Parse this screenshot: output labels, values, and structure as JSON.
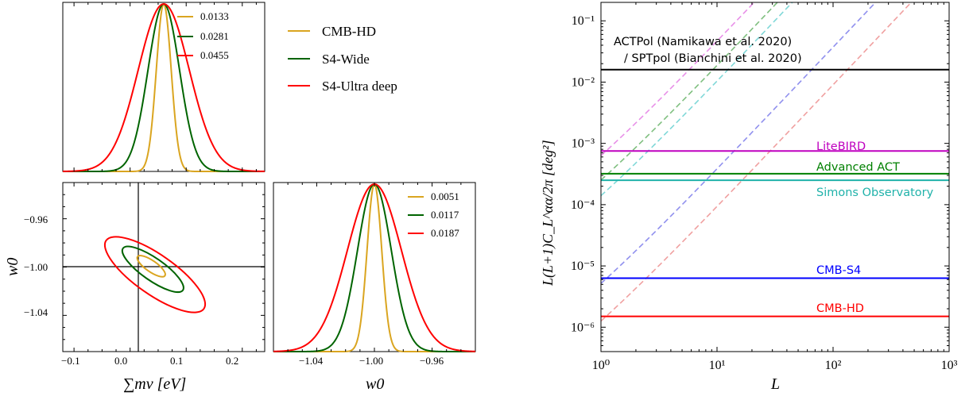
{
  "chart_data": [
    {
      "type": "line",
      "panel": "sum-mnu-1d",
      "xlim": [
        -0.12,
        0.24
      ],
      "legend": [
        "0.0133",
        "0.0281",
        "0.0455"
      ],
      "series": [
        {
          "name": "0.0133",
          "mean": 0.06,
          "sigma": 0.0133,
          "color": "#daa520"
        },
        {
          "name": "0.0281",
          "mean": 0.06,
          "sigma": 0.0281,
          "color": "#006400"
        },
        {
          "name": "0.0455",
          "mean": 0.06,
          "sigma": 0.0455,
          "color": "#ff0000"
        }
      ]
    },
    {
      "type": "scatter",
      "panel": "sum-mnu-w0-2d",
      "xlabel": "∑mν [eV]",
      "ylabel": "w0",
      "xlim": [
        -0.12,
        0.24
      ],
      "ylim": [
        -1.07,
        -0.93
      ],
      "xticks": [
        "−0.1",
        "0.0",
        "0.1",
        "0.2"
      ],
      "yticks": [
        "−0.96",
        "−1.00",
        "−1.04"
      ],
      "fiducial": {
        "x": 0.06,
        "y": -1.0
      }
    },
    {
      "type": "line",
      "panel": "w0-1d",
      "xlabel": "w0",
      "xlim": [
        -1.07,
        -0.93
      ],
      "xticks": [
        "−1.04",
        "−1.00",
        "−0.96"
      ],
      "legend": [
        "0.0051",
        "0.0117",
        "0.0187"
      ],
      "series": [
        {
          "name": "0.0051",
          "mean": -1.0,
          "sigma": 0.0051,
          "color": "#daa520"
        },
        {
          "name": "0.0117",
          "mean": -1.0,
          "sigma": 0.0117,
          "color": "#006400"
        },
        {
          "name": "0.0187",
          "mean": -1.0,
          "sigma": 0.0187,
          "color": "#ff0000"
        }
      ]
    },
    {
      "type": "line",
      "panel": "birefringence-noise",
      "xlabel": "L",
      "ylabel": "L(L+1)C_L^αα/2π [deg²]",
      "xscale": "log",
      "yscale": "log",
      "xlim": [
        1,
        1000
      ],
      "ylim": [
        4e-07,
        0.2
      ],
      "xticks": [
        "10⁰",
        "10¹",
        "10²",
        "10³"
      ],
      "yticks": [
        "10⁻⁶",
        "10⁻⁵",
        "10⁻⁴",
        "10⁻³",
        "10⁻²",
        "10⁻¹"
      ],
      "series": [
        {
          "name": "ACTPol (Namikawa et al. 2020)",
          "name_line2": "/ SPTpol (Bianchini et al. 2020)",
          "value": 0.016,
          "color": "#000000"
        },
        {
          "name": "LiteBIRD",
          "value": 0.00075,
          "color": "#bf00bf"
        },
        {
          "name": "Advanced ACT",
          "value": 0.00032,
          "color": "#008000"
        },
        {
          "name": "Simons Observatory",
          "value": 0.00025,
          "color": "#20b2aa"
        },
        {
          "name": "CMB-S4",
          "value": 6.3e-06,
          "color": "#0000ff"
        },
        {
          "name": "CMB-HD",
          "value": 1.5e-06,
          "color": "#ff0000"
        }
      ],
      "dashed_signal_curves": [
        {
          "color": "#e890e8",
          "values_at_L1": 0.00045,
          "slope": 2.0
        },
        {
          "color": "#7fbf7f",
          "values_at_L1": 0.00018,
          "slope": 2.0
        },
        {
          "color": "#80d8d8",
          "values_at_L1": 0.0001,
          "slope": 2.0
        },
        {
          "color": "#9090ee",
          "values_at_L1": 3.7e-06,
          "slope": 2.0
        },
        {
          "color": "#f0a0a0",
          "values_at_L1": 9e-07,
          "slope": 2.0
        }
      ]
    }
  ],
  "legend_main": [
    "CMB-HD",
    "S4-Wide",
    "S4-Ultra deep"
  ]
}
